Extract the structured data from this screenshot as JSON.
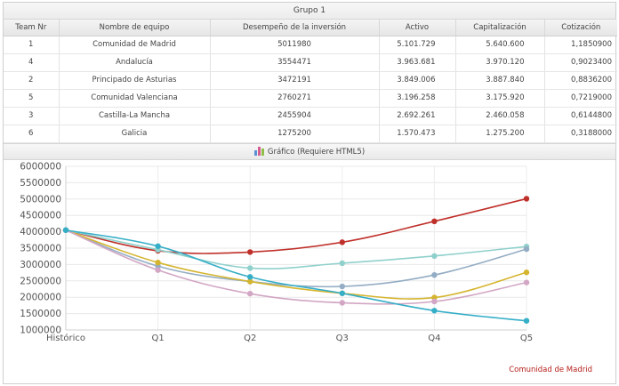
{
  "group": {
    "title": "Grupo 1"
  },
  "table": {
    "columns": [
      "Team Nr",
      "Nombre de equipo",
      "Desempeño de la inversión",
      "Activo",
      "Capitalización",
      "Cotización"
    ],
    "rows": [
      [
        "1",
        "Comunidad de Madrid",
        "5011980",
        "5.101.729",
        "5.640.600",
        "1,1850900"
      ],
      [
        "4",
        "Andalucía",
        "3554471",
        "3.963.681",
        "3.970.120",
        "0,9023400"
      ],
      [
        "2",
        "Principado de Asturias",
        "3472191",
        "3.849.006",
        "3.887.840",
        "0,8836200"
      ],
      [
        "5",
        "Comunidad Valenciana",
        "2760271",
        "3.196.258",
        "3.175.920",
        "0,7219000"
      ],
      [
        "3",
        "Castilla-La Mancha",
        "2455904",
        "2.692.261",
        "2.460.058",
        "0,6144800"
      ],
      [
        "6",
        "Galicia",
        "1275200",
        "1.570.473",
        "1.275.200",
        "0,3188000"
      ]
    ]
  },
  "chart_header": {
    "label": "Gráfico (Requiere HTML5)",
    "icon": "bar-chart-icon"
  },
  "chart_data": {
    "type": "line",
    "categories": [
      "Histórico",
      "Q1",
      "Q2",
      "Q3",
      "Q4",
      "Q5"
    ],
    "ylim": [
      1000000,
      6000000
    ],
    "yticks": [
      "6000000",
      "5500000",
      "5000000",
      "4500000",
      "4000000",
      "3500000",
      "3000000",
      "2500000",
      "2000000",
      "1500000",
      "1000000"
    ],
    "grid": true,
    "legend": {
      "placement": "bottom-right",
      "visible_entry": "Comunidad de Madrid"
    },
    "series": [
      {
        "name": "Comunidad de Madrid",
        "color": "#c0302a",
        "values": [
          4050000,
          3420000,
          3380000,
          3680000,
          4320000,
          5010000
        ]
      },
      {
        "color": "#8fd0cc",
        "values": [
          4050000,
          3450000,
          2890000,
          3040000,
          3260000,
          3550000
        ]
      },
      {
        "color": "#94adc4",
        "values": [
          4050000,
          2950000,
          2480000,
          2330000,
          2680000,
          3470000
        ]
      },
      {
        "color": "#d5b530",
        "values": [
          4050000,
          3060000,
          2480000,
          2120000,
          1990000,
          2760000
        ]
      },
      {
        "color": "#d2a6c4",
        "values": [
          4050000,
          2830000,
          2110000,
          1830000,
          1870000,
          2450000
        ]
      },
      {
        "color": "#35aec7",
        "values": [
          4050000,
          3560000,
          2620000,
          2120000,
          1590000,
          1280000
        ]
      }
    ]
  }
}
